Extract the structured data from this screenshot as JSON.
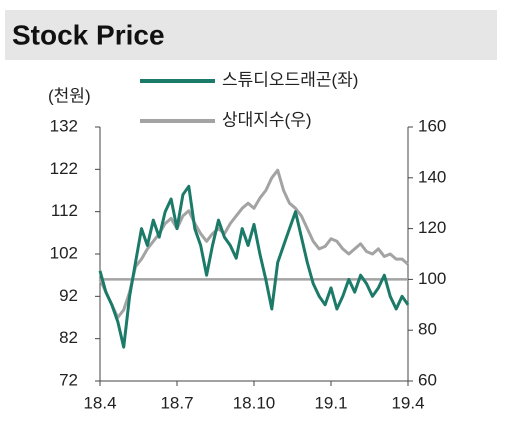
{
  "chart_data": {
    "type": "line",
    "title": "Stock Price",
    "y_label": "(천원)",
    "categories": [
      "18.4",
      null,
      null,
      null,
      null,
      null,
      null,
      null,
      null,
      null,
      null,
      null,
      null,
      "18.7",
      null,
      null,
      null,
      null,
      null,
      null,
      null,
      null,
      null,
      null,
      null,
      null,
      "18.10",
      null,
      null,
      null,
      null,
      null,
      null,
      null,
      null,
      null,
      null,
      null,
      null,
      "19.1",
      null,
      null,
      null,
      null,
      null,
      null,
      null,
      null,
      null,
      null,
      null,
      null,
      "19.4"
    ],
    "series": [
      {
        "name": "스튜디오드래곤(좌)",
        "color": "#1b7a68",
        "axis": "y",
        "values": [
          98,
          93,
          90,
          86,
          80,
          92,
          100,
          108,
          104,
          110,
          106,
          112,
          115,
          108,
          116,
          118,
          108,
          104,
          97,
          104,
          110,
          106,
          104,
          101,
          108,
          104,
          109,
          102,
          96,
          89,
          100,
          104,
          108,
          112,
          106,
          100,
          95,
          92,
          90,
          94,
          89,
          92,
          96,
          93,
          97,
          95,
          92,
          94,
          97,
          92,
          89,
          92,
          90
        ]
      },
      {
        "name": "상대지수(우)",
        "color": "#a3a3a3",
        "axis": "y2",
        "values": [
          100,
          95,
          90,
          85,
          88,
          95,
          105,
          108,
          112,
          115,
          118,
          122,
          124,
          120,
          125,
          127,
          122,
          118,
          115,
          118,
          120,
          118,
          122,
          125,
          128,
          130,
          128,
          132,
          135,
          140,
          143,
          135,
          130,
          128,
          125,
          120,
          115,
          112,
          113,
          116,
          115,
          112,
          110,
          112,
          114,
          111,
          110,
          112,
          109,
          110,
          108,
          108,
          106
        ]
      }
    ],
    "ylim": [
      72,
      132
    ],
    "yticks": [
      132,
      122,
      112,
      102,
      92,
      82,
      72
    ],
    "y2lim": [
      60,
      160
    ],
    "y2ticks": [
      160,
      140,
      120,
      100,
      80,
      60
    ],
    "reference_line": {
      "axis": "y2",
      "value": 100,
      "color": "#a3a3a3"
    }
  }
}
